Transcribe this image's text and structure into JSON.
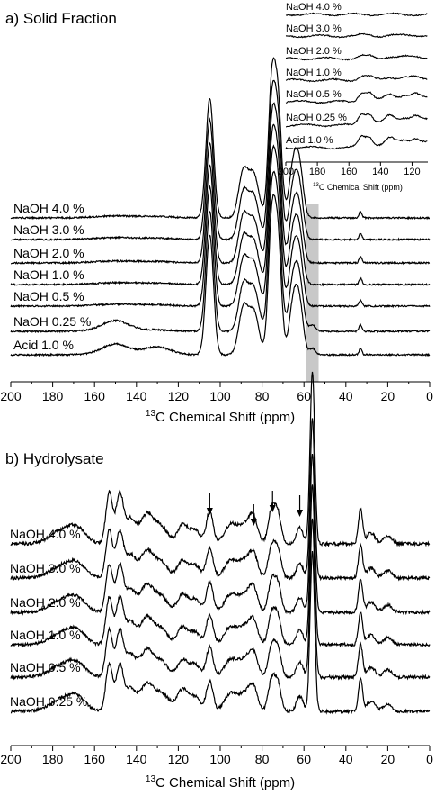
{
  "chart_data": [
    {
      "type": "line",
      "title": "a) Solid Fraction",
      "xlabel_sup": "13",
      "xlabel_main": "C Chemical Shift (ppm)",
      "xlim": [
        200,
        0
      ],
      "xticks": [
        200,
        180,
        160,
        140,
        120,
        100,
        80,
        60,
        40,
        20,
        0
      ],
      "series": [
        {
          "name": "NaOH 4.0 %"
        },
        {
          "name": "NaOH 3.0 %"
        },
        {
          "name": "NaOH 2.0 %"
        },
        {
          "name": "NaOH 1.0 %"
        },
        {
          "name": "NaOH 0.5 %"
        },
        {
          "name": "NaOH 0.25 %"
        },
        {
          "name": "Acid  1.0 %"
        }
      ],
      "peaks_ppm": [
        105,
        89,
        84,
        75,
        72,
        65,
        62,
        56,
        33
      ],
      "shaded_region_ppm": [
        53,
        59
      ],
      "inset": {
        "xlabel_sup": "13",
        "xlabel_main": "C Chemical Shift (ppm)",
        "xlim": [
          200,
          110
        ],
        "xticks": [
          200,
          180,
          160,
          140,
          120
        ],
        "series": [
          {
            "name": "NaOH 4.0 %"
          },
          {
            "name": "NaOH 3.0 %"
          },
          {
            "name": "NaOH 2.0 %"
          },
          {
            "name": "NaOH 1.0 %"
          },
          {
            "name": "NaOH 0.5 %"
          },
          {
            "name": "NaOH 0.25 %"
          },
          {
            "name": "Acid  1.0 %"
          }
        ]
      }
    },
    {
      "type": "line",
      "title": "b) Hydrolysate",
      "xlabel_sup": "13",
      "xlabel_main": "C Chemical Shift (ppm)",
      "xlim": [
        200,
        0
      ],
      "xticks": [
        200,
        180,
        160,
        140,
        120,
        100,
        80,
        60,
        40,
        20,
        0
      ],
      "series": [
        {
          "name": "NaOH 4.0 %"
        },
        {
          "name": "NaOH 3.0 %"
        },
        {
          "name": "NaOH 2.0 %"
        },
        {
          "name": "NaOH 1.0 %"
        },
        {
          "name": "NaOH 0.5 %"
        },
        {
          "name": "NaOH 0.25 %"
        }
      ],
      "peaks_ppm": [
        153,
        148,
        135,
        118,
        105,
        84,
        75,
        62,
        56,
        33,
        20
      ],
      "arrow_ppm": [
        105,
        84,
        75,
        62
      ]
    }
  ]
}
